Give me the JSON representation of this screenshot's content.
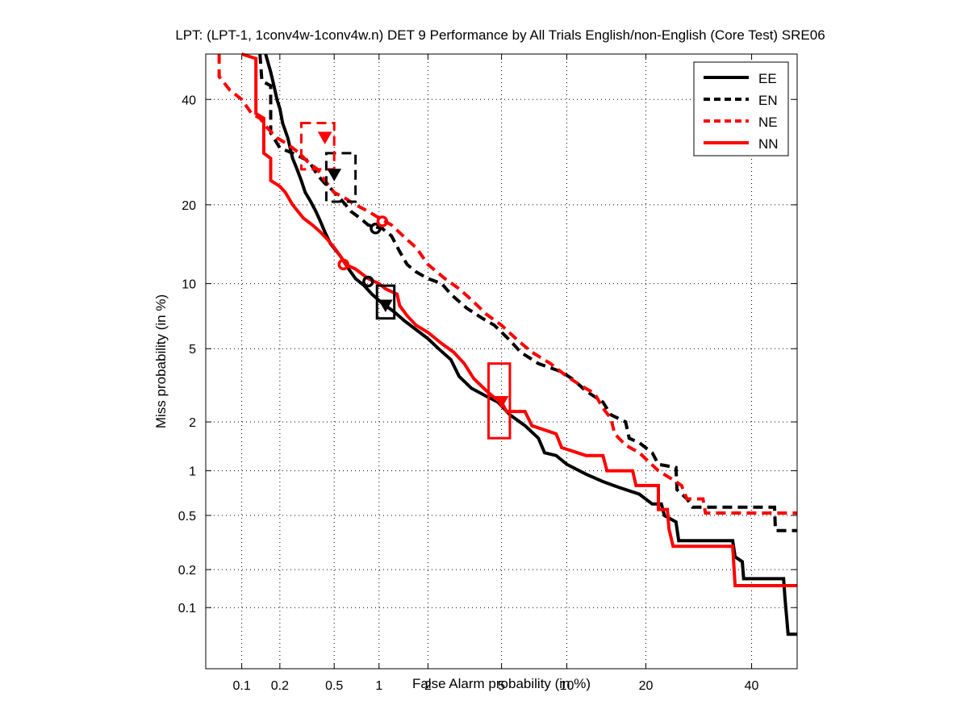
{
  "chart_data": {
    "type": "line",
    "title": "LPT: (LPT-1, 1conv4w-1conv4w.n) DET 9 Performance by All Trials English/non-English (Core Test) SRE06",
    "xlabel": "False Alarm probability (in %)",
    "ylabel": "Miss probability (in %)",
    "xscale": "probit",
    "yscale": "probit",
    "xlim": [
      0.05,
      50
    ],
    "ylim": [
      0.03,
      50
    ],
    "grid": true,
    "xticks": [
      0.1,
      0.2,
      0.5,
      1,
      2,
      5,
      10,
      20,
      40
    ],
    "xtick_labels": [
      "0.1",
      "0.2",
      "0.5",
      "1",
      "2",
      "5",
      "10",
      "20",
      "40"
    ],
    "yticks": [
      0.1,
      0.2,
      0.5,
      1,
      2,
      5,
      10,
      20,
      40
    ],
    "ytick_labels": [
      "0.1",
      "0.2",
      "0.5",
      "1",
      "2",
      "5",
      "10",
      "20",
      "40"
    ],
    "legend": {
      "placement": "top-right",
      "entries": [
        "EE",
        "EN",
        "NE",
        "NN"
      ]
    },
    "series": [
      {
        "name": "EE",
        "color": "#000000",
        "style": "solid",
        "points": [
          [
            0.155,
            50
          ],
          [
            0.17,
            46
          ],
          [
            0.18,
            43
          ],
          [
            0.19,
            40
          ],
          [
            0.2,
            38
          ],
          [
            0.21,
            35
          ],
          [
            0.23,
            32
          ],
          [
            0.25,
            28
          ],
          [
            0.27,
            26
          ],
          [
            0.29,
            24
          ],
          [
            0.31,
            22
          ],
          [
            0.34,
            20.5
          ],
          [
            0.37,
            19
          ],
          [
            0.4,
            17.5
          ],
          [
            0.43,
            16
          ],
          [
            0.47,
            14.5
          ],
          [
            0.55,
            13
          ],
          [
            0.63,
            11.5
          ],
          [
            0.7,
            10.5
          ],
          [
            0.8,
            9.8
          ],
          [
            0.9,
            9
          ],
          [
            1.05,
            8.2
          ],
          [
            1.25,
            7.5
          ],
          [
            1.45,
            6.8
          ],
          [
            1.7,
            6.2
          ],
          [
            2.0,
            5.6
          ],
          [
            2.3,
            5.0
          ],
          [
            2.7,
            4.4
          ],
          [
            3.0,
            3.6
          ],
          [
            3.5,
            3.1
          ],
          [
            4.2,
            2.8
          ],
          [
            4.8,
            2.6
          ],
          [
            5.5,
            2.2
          ],
          [
            6.5,
            1.9
          ],
          [
            7.5,
            1.6
          ],
          [
            8,
            1.3
          ],
          [
            9,
            1.25
          ],
          [
            10,
            1.1
          ],
          [
            12,
            0.95
          ],
          [
            14,
            0.85
          ],
          [
            16,
            0.78
          ],
          [
            19,
            0.7
          ],
          [
            21,
            0.6
          ],
          [
            22.5,
            0.6
          ],
          [
            23,
            0.5
          ],
          [
            25,
            0.45
          ],
          [
            25.5,
            0.33
          ],
          [
            36,
            0.33
          ],
          [
            36.5,
            0.25
          ],
          [
            38,
            0.23
          ],
          [
            38.3,
            0.17
          ],
          [
            47,
            0.17
          ],
          [
            47.3,
            0.12
          ],
          [
            48,
            0.06
          ],
          [
            50,
            0.06
          ]
        ]
      },
      {
        "name": "EN",
        "color": "#000000",
        "style": "dashed",
        "points": [
          [
            0.14,
            50
          ],
          [
            0.145,
            44
          ],
          [
            0.17,
            43
          ],
          [
            0.17,
            33
          ],
          [
            0.2,
            30
          ],
          [
            0.25,
            29
          ],
          [
            0.33,
            27.5
          ],
          [
            0.38,
            25
          ],
          [
            0.43,
            23.5
          ],
          [
            0.46,
            23
          ],
          [
            0.5,
            22
          ],
          [
            0.55,
            21
          ],
          [
            0.6,
            20
          ],
          [
            0.65,
            19
          ],
          [
            0.75,
            18
          ],
          [
            0.85,
            17
          ],
          [
            1.05,
            16.5
          ],
          [
            1.2,
            15.5
          ],
          [
            1.35,
            13.5
          ],
          [
            1.5,
            12
          ],
          [
            1.7,
            11.2
          ],
          [
            2.0,
            10.5
          ],
          [
            2.4,
            10
          ],
          [
            2.7,
            9
          ],
          [
            3.3,
            7.8
          ],
          [
            4.0,
            7
          ],
          [
            4.6,
            6.5
          ],
          [
            5.5,
            5.5
          ],
          [
            6.2,
            4.8
          ],
          [
            7.5,
            4.2
          ],
          [
            9.5,
            3.8
          ],
          [
            10.5,
            3.5
          ],
          [
            12,
            3.0
          ],
          [
            14,
            2.6
          ],
          [
            15,
            2.2
          ],
          [
            17,
            2.0
          ],
          [
            17.5,
            1.6
          ],
          [
            19,
            1.5
          ],
          [
            21,
            1.3
          ],
          [
            22,
            1.1
          ],
          [
            25,
            1.05
          ],
          [
            25.2,
            0.75
          ],
          [
            27,
            0.65
          ],
          [
            28,
            0.57
          ],
          [
            45,
            0.57
          ],
          [
            45.2,
            0.39
          ],
          [
            50,
            0.39
          ]
        ]
      },
      {
        "name": "NE",
        "color": "#ff0000",
        "style": "dashed",
        "points": [
          [
            0.065,
            50
          ],
          [
            0.065,
            45
          ],
          [
            0.08,
            42
          ],
          [
            0.1,
            40
          ],
          [
            0.12,
            37
          ],
          [
            0.14,
            36
          ],
          [
            0.16,
            34
          ],
          [
            0.19,
            32
          ],
          [
            0.22,
            31
          ],
          [
            0.25,
            30
          ],
          [
            0.28,
            29
          ],
          [
            0.32,
            27.5
          ],
          [
            0.38,
            26
          ],
          [
            0.43,
            24
          ],
          [
            0.5,
            22
          ],
          [
            0.6,
            21
          ],
          [
            0.7,
            20
          ],
          [
            0.85,
            19
          ],
          [
            1.0,
            18
          ],
          [
            1.2,
            17
          ],
          [
            1.5,
            15
          ],
          [
            1.7,
            14
          ],
          [
            2.0,
            12
          ],
          [
            2.5,
            10.5
          ],
          [
            3.0,
            9.5
          ],
          [
            3.5,
            8.5
          ],
          [
            4.2,
            7.3
          ],
          [
            5.0,
            6.5
          ],
          [
            6.0,
            5.5
          ],
          [
            7.0,
            4.8
          ],
          [
            8.5,
            4.2
          ],
          [
            10,
            3.6
          ],
          [
            11.5,
            3.2
          ],
          [
            13,
            2.9
          ],
          [
            14,
            2.4
          ],
          [
            15,
            2.1
          ],
          [
            15.5,
            1.7
          ],
          [
            17,
            1.45
          ],
          [
            19,
            1.3
          ],
          [
            22,
            1.0
          ],
          [
            25,
            0.85
          ],
          [
            26,
            0.8
          ],
          [
            27,
            0.65
          ],
          [
            30,
            0.65
          ],
          [
            30.5,
            0.52
          ],
          [
            50,
            0.52
          ]
        ]
      },
      {
        "name": "NN",
        "color": "#ff0000",
        "style": "solid",
        "points": [
          [
            0.1,
            50
          ],
          [
            0.13,
            49
          ],
          [
            0.13,
            37
          ],
          [
            0.15,
            36
          ],
          [
            0.15,
            29
          ],
          [
            0.17,
            28
          ],
          [
            0.17,
            24
          ],
          [
            0.2,
            23
          ],
          [
            0.22,
            22
          ],
          [
            0.25,
            20
          ],
          [
            0.3,
            18
          ],
          [
            0.35,
            17
          ],
          [
            0.4,
            16
          ],
          [
            0.45,
            15
          ],
          [
            0.5,
            14
          ],
          [
            0.55,
            13
          ],
          [
            0.6,
            12
          ],
          [
            0.7,
            11.5
          ],
          [
            0.85,
            10.5
          ],
          [
            1.0,
            10
          ],
          [
            1.1,
            9.5
          ],
          [
            1.3,
            9
          ],
          [
            1.35,
            8
          ],
          [
            1.5,
            7.2
          ],
          [
            1.7,
            6.5
          ],
          [
            2.0,
            6.0
          ],
          [
            2.4,
            5.3
          ],
          [
            2.8,
            4.8
          ],
          [
            3.2,
            4.2
          ],
          [
            3.6,
            3.5
          ],
          [
            4.2,
            3.0
          ],
          [
            4.7,
            2.7
          ],
          [
            5.0,
            2.6
          ],
          [
            5.3,
            2.3
          ],
          [
            6.5,
            2.3
          ],
          [
            7.0,
            1.9
          ],
          [
            9.0,
            1.7
          ],
          [
            9.5,
            1.4
          ],
          [
            12,
            1.25
          ],
          [
            14,
            1.25
          ],
          [
            14.5,
            1.0
          ],
          [
            18,
            1.0
          ],
          [
            18.5,
            0.8
          ],
          [
            22,
            0.8
          ],
          [
            22,
            0.55
          ],
          [
            23.5,
            0.55
          ],
          [
            23.8,
            0.4
          ],
          [
            24.5,
            0.3
          ],
          [
            36,
            0.3
          ],
          [
            36.5,
            0.15
          ],
          [
            50,
            0.15
          ]
        ]
      }
    ],
    "markers": [
      {
        "series": "EE",
        "type": "circle",
        "x": 0.85,
        "y": 10.2
      },
      {
        "series": "EE",
        "type": "triangle",
        "x": 1.1,
        "y": 8.0
      },
      {
        "series": "EN",
        "type": "circle",
        "x": 0.95,
        "y": 16.5
      },
      {
        "series": "EN",
        "type": "triangle",
        "x": 0.5,
        "y": 25
      },
      {
        "series": "NE",
        "type": "circle",
        "x": 1.05,
        "y": 17.5
      },
      {
        "series": "NE",
        "type": "triangle",
        "x": 0.43,
        "y": 32
      },
      {
        "series": "NN",
        "type": "circle",
        "x": 0.58,
        "y": 12
      },
      {
        "series": "NN",
        "type": "triangle",
        "x": 5.0,
        "y": 2.6
      }
    ],
    "confidence_boxes": [
      {
        "series": "EE",
        "x": [
          0.97,
          1.25
        ],
        "y": [
          7.0,
          9.8
        ]
      },
      {
        "series": "EN",
        "x": [
          0.44,
          0.7
        ],
        "y": [
          20.5,
          29
        ]
      },
      {
        "series": "NE",
        "x": [
          0.29,
          0.5
        ],
        "y": [
          26,
          35
        ]
      },
      {
        "series": "NN",
        "x": [
          4.3,
          5.5
        ],
        "y": [
          1.6,
          4.2
        ]
      }
    ]
  }
}
